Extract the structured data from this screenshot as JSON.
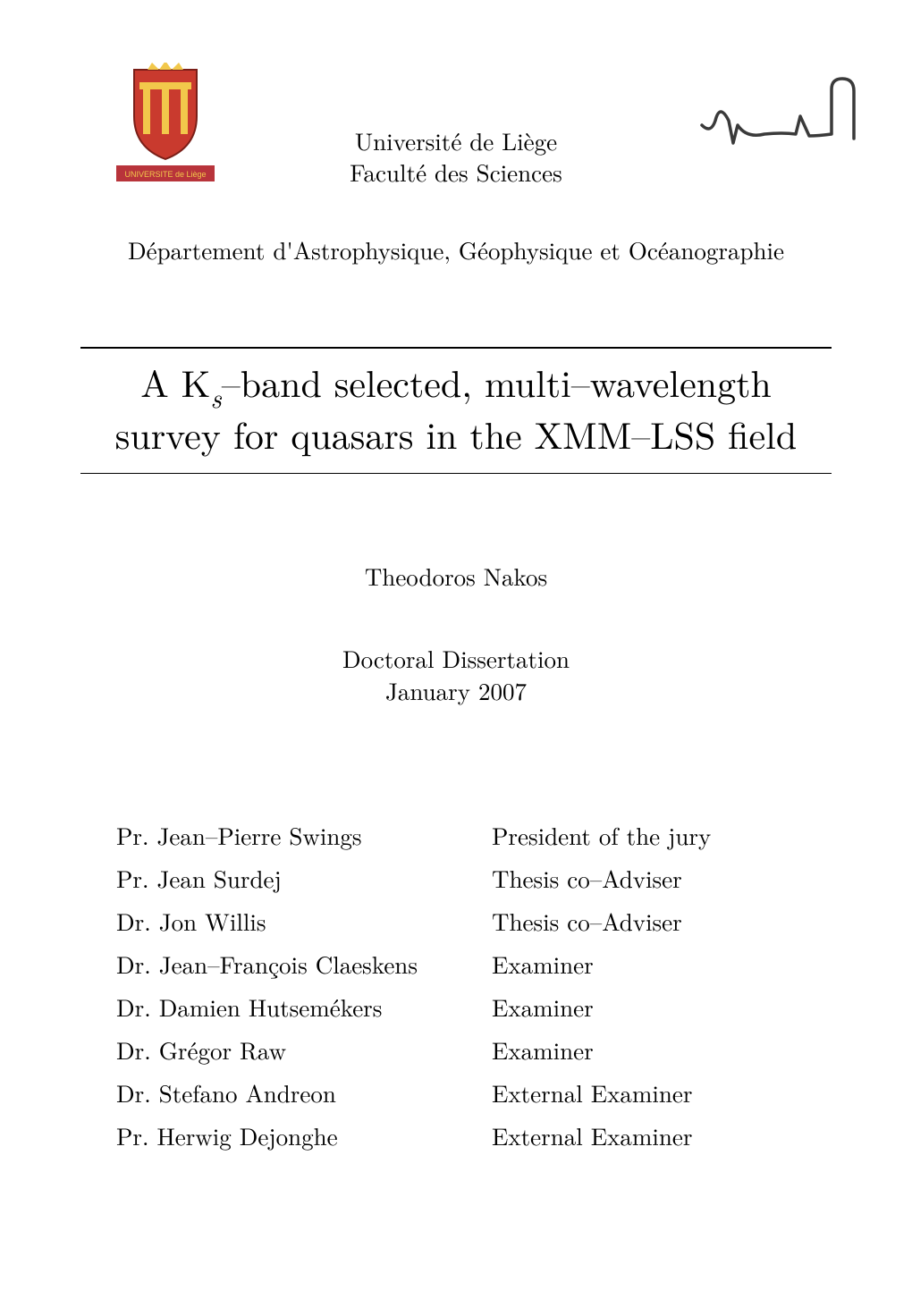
{
  "header": {
    "institution_line1": "Université de Liège",
    "institution_line2": "Faculté des Sciences",
    "department": "Département d'Astrophysique, Géophysique et Océanographie",
    "logo_text": "UNIVERSITE de Liège",
    "logo_crest_bg": "#c93a2e",
    "logo_crest_accent": "#f2c84b",
    "logo_band_bg": "#b8343b",
    "logo_band_text_color": "#f2c84b",
    "signature_stroke": "#3a3a3a"
  },
  "title": {
    "prefix": "A K",
    "subscript": "s",
    "line1_suffix": "–band selected, multi–wavelength",
    "line2": "survey for quasars in the XMM–LSS field"
  },
  "author": "Theodoros Nakos",
  "doc_type": {
    "line1": "Doctoral Dissertation",
    "line2": "January 2007"
  },
  "committee": [
    {
      "name": "Pr. Jean–Pierre Swings",
      "role": "President of the jury"
    },
    {
      "name": "Pr. Jean Surdej",
      "role": "Thesis co–Adviser"
    },
    {
      "name": "Dr. Jon Willis",
      "role": "Thesis co–Adviser"
    },
    {
      "name": "Dr. Jean–François Claeskens",
      "role": "Examiner"
    },
    {
      "name": "Dr. Damien Hutsemékers",
      "role": "Examiner"
    },
    {
      "name": "Dr. Grégor Raw",
      "role": "Examiner"
    },
    {
      "name": "Dr. Stefano Andreon",
      "role": "External Examiner"
    },
    {
      "name": "Pr. Herwig Dejonghe",
      "role": "External Examiner"
    }
  ],
  "style": {
    "rule_color": "#000000",
    "text_color": "#000000",
    "bg_color": "#ffffff",
    "base_fontsize_pt": 20,
    "title_fontsize_pt": 31
  }
}
